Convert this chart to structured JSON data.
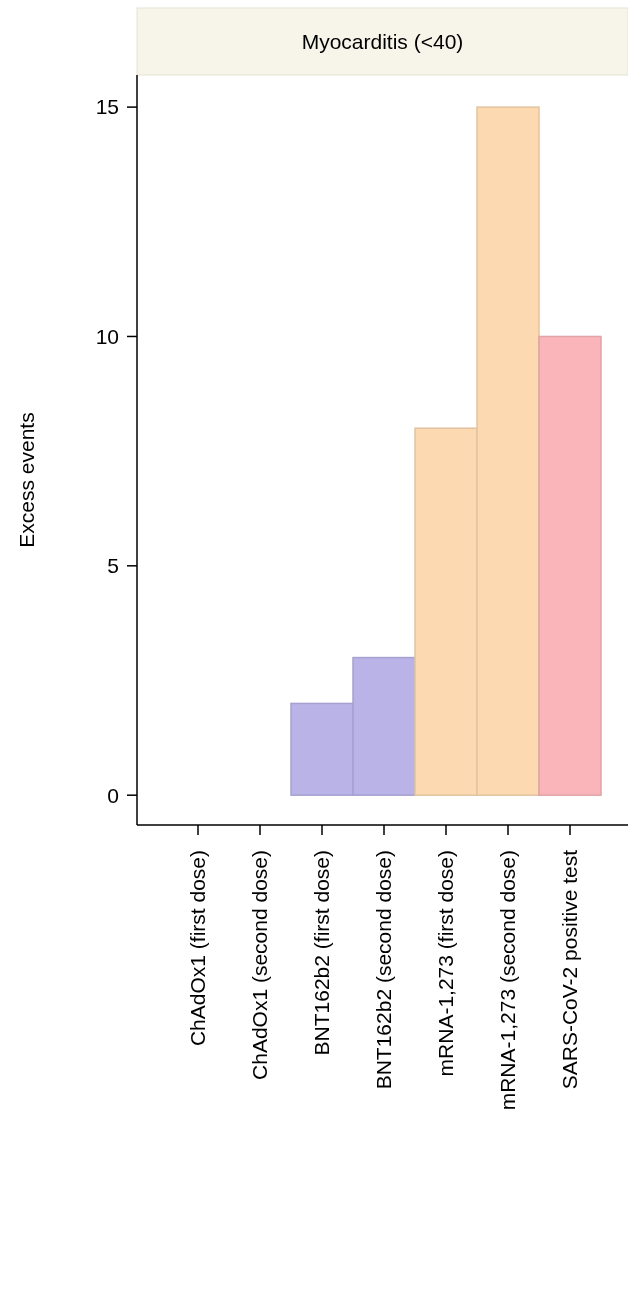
{
  "chart_data": {
    "type": "bar",
    "title": "Myocarditis (<40)",
    "ylabel": "Excess events",
    "categories": [
      "ChAdOx1 (first dose)",
      "ChAdOx1 (second dose)",
      "BNT162b2 (first dose)",
      "BNT162b2 (second dose)",
      "mRNA-1,273 (first dose)",
      "mRNA-1,273 (second dose)",
      "SARS-CoV-2 positive test"
    ],
    "values": [
      0,
      0,
      2,
      3,
      8,
      15,
      10
    ],
    "colors": [
      "#b9b3e8",
      "#b9b3e8",
      "#b9b3e8",
      "#b9b3e8",
      "#fcd9b1",
      "#fcd9b1",
      "#f9b5ba"
    ],
    "ylim": [
      -0.65,
      15.7
    ],
    "yticks": [
      0,
      5,
      10,
      15
    ],
    "grid": false
  }
}
